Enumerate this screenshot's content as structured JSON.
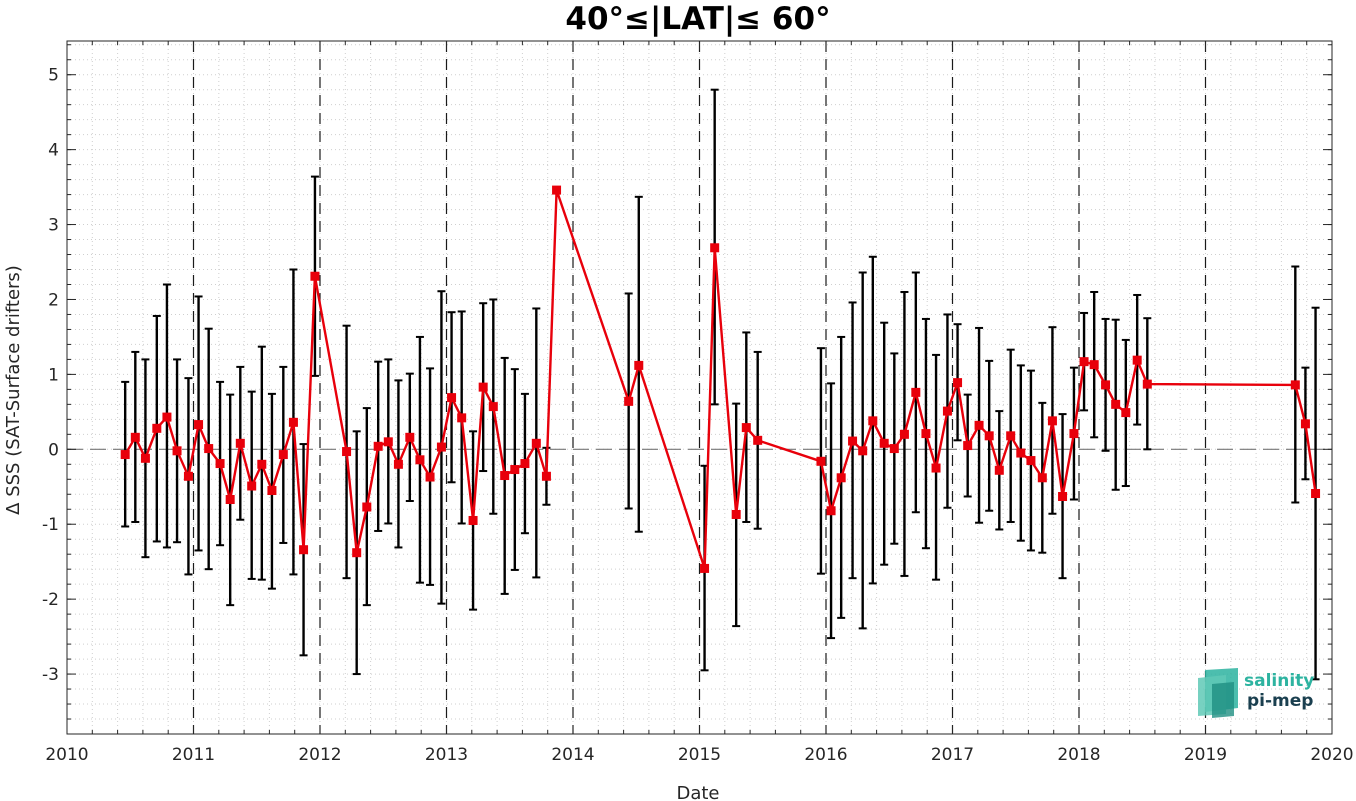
{
  "chart_data": {
    "type": "line",
    "title": "40°≤|LAT|≤ 60°",
    "xlabel": "Date",
    "ylabel": "Δ SSS (SAT-Surface drifters)",
    "xlim": [
      2010,
      2020
    ],
    "ylim": [
      -3.8,
      5.45
    ],
    "x_ticks": [
      "2010",
      "2011",
      "2012",
      "2013",
      "2014",
      "2015",
      "2016",
      "2017",
      "2018",
      "2019",
      "2020"
    ],
    "y_ticks": [
      "5",
      "4",
      "3",
      "2",
      "1",
      "0",
      "-1",
      "-2",
      "-3"
    ],
    "grid": "minor dotted",
    "year_separators": "dashed vertical lines at each year",
    "zero_line": "dashed",
    "series": [
      {
        "color": "#e8000b",
        "marker": "square",
        "errorbar_color": "#000000",
        "points": [
          {
            "x": 2010.46,
            "y": -0.07,
            "lo": -1.03,
            "hi": 0.9
          },
          {
            "x": 2010.54,
            "y": 0.16,
            "lo": -0.97,
            "hi": 1.3
          },
          {
            "x": 2010.62,
            "y": -0.12,
            "lo": -1.44,
            "hi": 1.2
          },
          {
            "x": 2010.71,
            "y": 0.28,
            "lo": -1.23,
            "hi": 1.78
          },
          {
            "x": 2010.79,
            "y": 0.43,
            "lo": -1.31,
            "hi": 2.2
          },
          {
            "x": 2010.87,
            "y": -0.02,
            "lo": -1.24,
            "hi": 1.2
          },
          {
            "x": 2010.96,
            "y": -0.36,
            "lo": -1.67,
            "hi": 0.95
          },
          {
            "x": 2011.04,
            "y": 0.33,
            "lo": -1.35,
            "hi": 2.04
          },
          {
            "x": 2011.12,
            "y": 0.01,
            "lo": -1.6,
            "hi": 1.61
          },
          {
            "x": 2011.21,
            "y": -0.19,
            "lo": -1.28,
            "hi": 0.9
          },
          {
            "x": 2011.29,
            "y": -0.67,
            "lo": -2.08,
            "hi": 0.73
          },
          {
            "x": 2011.37,
            "y": 0.08,
            "lo": -0.94,
            "hi": 1.1
          },
          {
            "x": 2011.46,
            "y": -0.49,
            "lo": -1.73,
            "hi": 0.77
          },
          {
            "x": 2011.54,
            "y": -0.2,
            "lo": -1.74,
            "hi": 1.37
          },
          {
            "x": 2011.62,
            "y": -0.55,
            "lo": -1.86,
            "hi": 0.74
          },
          {
            "x": 2011.71,
            "y": -0.07,
            "lo": -1.25,
            "hi": 1.1
          },
          {
            "x": 2011.79,
            "y": 0.36,
            "lo": -1.67,
            "hi": 2.4
          },
          {
            "x": 2011.87,
            "y": -1.34,
            "lo": -2.75,
            "hi": 0.07
          },
          {
            "x": 2011.96,
            "y": 2.31,
            "lo": 0.98,
            "hi": 3.64
          },
          {
            "x": 2012.21,
            "y": -0.03,
            "lo": -1.72,
            "hi": 1.65
          },
          {
            "x": 2012.29,
            "y": -1.38,
            "lo": -3.0,
            "hi": 0.24
          },
          {
            "x": 2012.37,
            "y": -0.77,
            "lo": -2.08,
            "hi": 0.55
          },
          {
            "x": 2012.46,
            "y": 0.04,
            "lo": -1.09,
            "hi": 1.17
          },
          {
            "x": 2012.54,
            "y": 0.1,
            "lo": -0.99,
            "hi": 1.2
          },
          {
            "x": 2012.62,
            "y": -0.2,
            "lo": -1.31,
            "hi": 0.92
          },
          {
            "x": 2012.71,
            "y": 0.16,
            "lo": -0.69,
            "hi": 1.01
          },
          {
            "x": 2012.79,
            "y": -0.14,
            "lo": -1.78,
            "hi": 1.5
          },
          {
            "x": 2012.87,
            "y": -0.37,
            "lo": -1.81,
            "hi": 1.08
          },
          {
            "x": 2012.96,
            "y": 0.03,
            "lo": -2.06,
            "hi": 2.11
          },
          {
            "x": 2013.04,
            "y": 0.69,
            "lo": -0.44,
            "hi": 1.83
          },
          {
            "x": 2013.12,
            "y": 0.42,
            "lo": -0.99,
            "hi": 1.84
          },
          {
            "x": 2013.21,
            "y": -0.95,
            "lo": -2.14,
            "hi": 0.24
          },
          {
            "x": 2013.29,
            "y": 0.83,
            "lo": -0.29,
            "hi": 1.95
          },
          {
            "x": 2013.37,
            "y": 0.57,
            "lo": -0.86,
            "hi": 2.0
          },
          {
            "x": 2013.46,
            "y": -0.35,
            "lo": -1.93,
            "hi": 1.22
          },
          {
            "x": 2013.54,
            "y": -0.27,
            "lo": -1.61,
            "hi": 1.07
          },
          {
            "x": 2013.62,
            "y": -0.19,
            "lo": -1.12,
            "hi": 0.74
          },
          {
            "x": 2013.71,
            "y": 0.08,
            "lo": -1.71,
            "hi": 1.88
          },
          {
            "x": 2013.79,
            "y": -0.36,
            "lo": -0.74,
            "hi": 0.02
          },
          {
            "x": 2013.87,
            "y": 3.46,
            "lo": 3.46,
            "hi": 3.46
          },
          {
            "x": 2014.44,
            "y": 0.64,
            "lo": -0.79,
            "hi": 2.08
          },
          {
            "x": 2014.52,
            "y": 1.12,
            "lo": -1.1,
            "hi": 3.37
          },
          {
            "x": 2015.04,
            "y": -1.59,
            "lo": -2.95,
            "hi": -0.22
          },
          {
            "x": 2015.12,
            "y": 2.69,
            "lo": 0.6,
            "hi": 4.8
          },
          {
            "x": 2015.29,
            "y": -0.87,
            "lo": -2.36,
            "hi": 0.61
          },
          {
            "x": 2015.37,
            "y": 0.29,
            "lo": -0.97,
            "hi": 1.56
          },
          {
            "x": 2015.46,
            "y": 0.12,
            "lo": -1.06,
            "hi": 1.3
          },
          {
            "x": 2015.96,
            "y": -0.16,
            "lo": -1.66,
            "hi": 1.35
          },
          {
            "x": 2016.04,
            "y": -0.82,
            "lo": -2.52,
            "hi": 0.88
          },
          {
            "x": 2016.12,
            "y": -0.38,
            "lo": -2.25,
            "hi": 1.5
          },
          {
            "x": 2016.21,
            "y": 0.11,
            "lo": -1.72,
            "hi": 1.96
          },
          {
            "x": 2016.29,
            "y": -0.02,
            "lo": -2.39,
            "hi": 2.36
          },
          {
            "x": 2016.37,
            "y": 0.38,
            "lo": -1.79,
            "hi": 2.57
          },
          {
            "x": 2016.46,
            "y": 0.08,
            "lo": -1.54,
            "hi": 1.69
          },
          {
            "x": 2016.54,
            "y": 0.01,
            "lo": -1.26,
            "hi": 1.28
          },
          {
            "x": 2016.62,
            "y": 0.2,
            "lo": -1.69,
            "hi": 2.1
          },
          {
            "x": 2016.71,
            "y": 0.76,
            "lo": -0.84,
            "hi": 2.36
          },
          {
            "x": 2016.79,
            "y": 0.21,
            "lo": -1.32,
            "hi": 1.74
          },
          {
            "x": 2016.87,
            "y": -0.25,
            "lo": -1.74,
            "hi": 1.26
          },
          {
            "x": 2016.96,
            "y": 0.51,
            "lo": -0.78,
            "hi": 1.8
          },
          {
            "x": 2017.04,
            "y": 0.89,
            "lo": 0.12,
            "hi": 1.67
          },
          {
            "x": 2017.12,
            "y": 0.05,
            "lo": -0.63,
            "hi": 0.73
          },
          {
            "x": 2017.21,
            "y": 0.32,
            "lo": -0.98,
            "hi": 1.62
          },
          {
            "x": 2017.29,
            "y": 0.18,
            "lo": -0.82,
            "hi": 1.18
          },
          {
            "x": 2017.37,
            "y": -0.28,
            "lo": -1.07,
            "hi": 0.51
          },
          {
            "x": 2017.46,
            "y": 0.18,
            "lo": -0.97,
            "hi": 1.33
          },
          {
            "x": 2017.54,
            "y": -0.05,
            "lo": -1.22,
            "hi": 1.12
          },
          {
            "x": 2017.62,
            "y": -0.15,
            "lo": -1.35,
            "hi": 1.05
          },
          {
            "x": 2017.71,
            "y": -0.38,
            "lo": -1.38,
            "hi": 0.62
          },
          {
            "x": 2017.79,
            "y": 0.38,
            "lo": -0.86,
            "hi": 1.63
          },
          {
            "x": 2017.87,
            "y": -0.63,
            "lo": -1.72,
            "hi": 0.47
          },
          {
            "x": 2017.96,
            "y": 0.21,
            "lo": -0.67,
            "hi": 1.09
          },
          {
            "x": 2018.04,
            "y": 1.17,
            "lo": 0.52,
            "hi": 1.82
          },
          {
            "x": 2018.12,
            "y": 1.13,
            "lo": 0.16,
            "hi": 2.1
          },
          {
            "x": 2018.21,
            "y": 0.86,
            "lo": -0.02,
            "hi": 1.74
          },
          {
            "x": 2018.29,
            "y": 0.6,
            "lo": -0.54,
            "hi": 1.73
          },
          {
            "x": 2018.37,
            "y": 0.49,
            "lo": -0.49,
            "hi": 1.46
          },
          {
            "x": 2018.46,
            "y": 1.19,
            "lo": 0.33,
            "hi": 2.06
          },
          {
            "x": 2018.54,
            "y": 0.87,
            "lo": 0.0,
            "hi": 1.75
          },
          {
            "x": 2019.71,
            "y": 0.86,
            "lo": -0.71,
            "hi": 2.44
          },
          {
            "x": 2019.79,
            "y": 0.34,
            "lo": -0.4,
            "hi": 1.09
          },
          {
            "x": 2019.87,
            "y": -0.59,
            "lo": -3.07,
            "hi": 1.89
          }
        ]
      }
    ]
  },
  "logo": {
    "name": "salinity-pi-mep-logo",
    "line1": "salinity",
    "line2": "pi-mep",
    "color1": "#2db3a0",
    "color2": "#1a3f4f"
  }
}
